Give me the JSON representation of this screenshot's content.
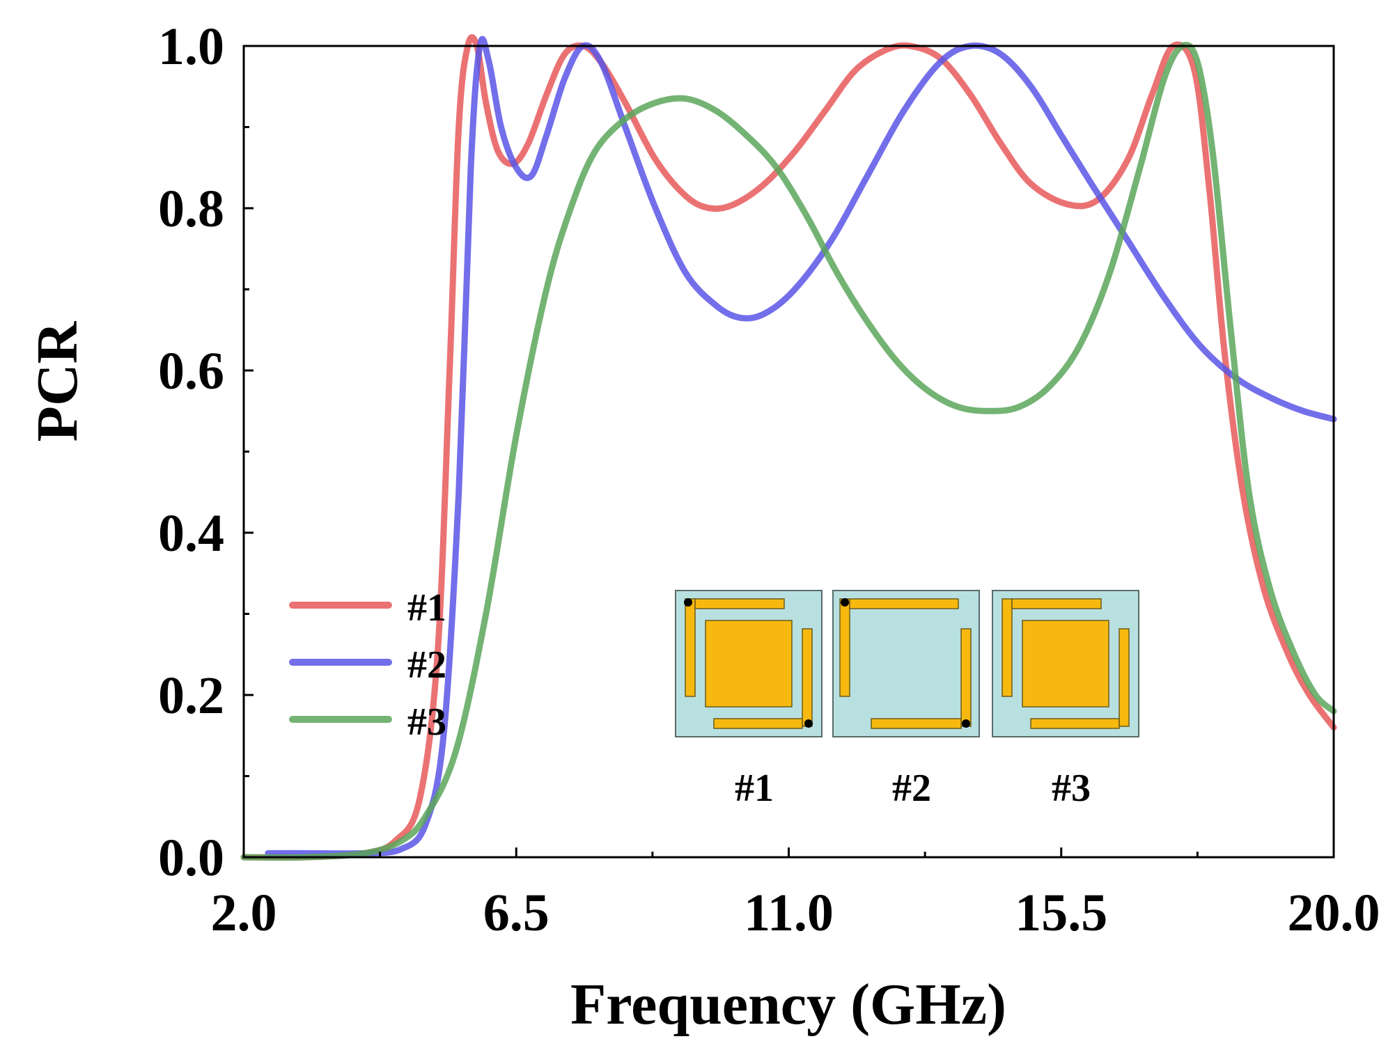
{
  "chart_data": {
    "type": "line",
    "title": "",
    "xlabel": "Frequency (GHz)",
    "ylabel": "PCR",
    "xlim": [
      2.0,
      20.0
    ],
    "ylim": [
      0.0,
      1.0
    ],
    "grid": false,
    "legend_position": "left",
    "x_ticks": [
      2.0,
      6.5,
      11.0,
      15.5,
      20.0
    ],
    "x_tick_labels": [
      "2.0",
      "6.5",
      "11.0",
      "15.5",
      "20.0"
    ],
    "y_ticks": [
      0.0,
      0.2,
      0.4,
      0.6,
      0.8,
      1.0
    ],
    "y_tick_labels": [
      "0.0",
      "0.2",
      "0.4",
      "0.6",
      "0.8",
      "1.0"
    ],
    "series": [
      {
        "name": "#1",
        "color": "#e8595a",
        "points": [
          [
            2.0,
            0.0
          ],
          [
            3.0,
            0.0
          ],
          [
            4.0,
            0.005
          ],
          [
            4.5,
            0.02
          ],
          [
            4.9,
            0.07
          ],
          [
            5.2,
            0.25
          ],
          [
            5.4,
            0.6
          ],
          [
            5.55,
            0.9
          ],
          [
            5.7,
            1.0
          ],
          [
            5.85,
            1.0
          ],
          [
            6.0,
            0.93
          ],
          [
            6.2,
            0.87
          ],
          [
            6.45,
            0.855
          ],
          [
            6.7,
            0.88
          ],
          [
            7.0,
            0.94
          ],
          [
            7.3,
            0.99
          ],
          [
            7.6,
            1.0
          ],
          [
            7.9,
            0.98
          ],
          [
            8.3,
            0.93
          ],
          [
            8.8,
            0.86
          ],
          [
            9.3,
            0.815
          ],
          [
            9.7,
            0.8
          ],
          [
            10.1,
            0.805
          ],
          [
            10.6,
            0.83
          ],
          [
            11.1,
            0.87
          ],
          [
            11.6,
            0.92
          ],
          [
            12.1,
            0.97
          ],
          [
            12.6,
            0.995
          ],
          [
            13.0,
            1.0
          ],
          [
            13.5,
            0.985
          ],
          [
            14.0,
            0.94
          ],
          [
            14.5,
            0.88
          ],
          [
            15.0,
            0.83
          ],
          [
            15.6,
            0.805
          ],
          [
            16.1,
            0.81
          ],
          [
            16.6,
            0.86
          ],
          [
            17.0,
            0.94
          ],
          [
            17.35,
            1.0
          ],
          [
            17.7,
            0.97
          ],
          [
            17.95,
            0.82
          ],
          [
            18.2,
            0.62
          ],
          [
            18.5,
            0.45
          ],
          [
            18.85,
            0.33
          ],
          [
            19.25,
            0.25
          ],
          [
            19.6,
            0.2
          ],
          [
            20.0,
            0.16
          ]
        ]
      },
      {
        "name": "#2",
        "color": "#5b55e6",
        "points": [
          [
            2.4,
            0.005
          ],
          [
            3.0,
            0.005
          ],
          [
            4.0,
            0.005
          ],
          [
            4.6,
            0.01
          ],
          [
            5.0,
            0.04
          ],
          [
            5.3,
            0.15
          ],
          [
            5.55,
            0.45
          ],
          [
            5.75,
            0.85
          ],
          [
            5.9,
            1.0
          ],
          [
            6.05,
            0.98
          ],
          [
            6.25,
            0.9
          ],
          [
            6.5,
            0.85
          ],
          [
            6.75,
            0.84
          ],
          [
            7.0,
            0.89
          ],
          [
            7.3,
            0.96
          ],
          [
            7.6,
            1.0
          ],
          [
            7.9,
            0.98
          ],
          [
            8.3,
            0.9
          ],
          [
            8.8,
            0.8
          ],
          [
            9.3,
            0.72
          ],
          [
            9.8,
            0.68
          ],
          [
            10.2,
            0.665
          ],
          [
            10.6,
            0.67
          ],
          [
            11.1,
            0.7
          ],
          [
            11.7,
            0.76
          ],
          [
            12.3,
            0.84
          ],
          [
            12.9,
            0.92
          ],
          [
            13.5,
            0.98
          ],
          [
            14.0,
            1.0
          ],
          [
            14.5,
            0.99
          ],
          [
            15.0,
            0.95
          ],
          [
            15.5,
            0.89
          ],
          [
            16.0,
            0.83
          ],
          [
            16.6,
            0.76
          ],
          [
            17.2,
            0.69
          ],
          [
            17.8,
            0.63
          ],
          [
            18.4,
            0.59
          ],
          [
            19.0,
            0.565
          ],
          [
            19.5,
            0.55
          ],
          [
            20.0,
            0.54
          ]
        ]
      },
      {
        "name": "#3",
        "color": "#5aa65a",
        "points": [
          [
            2.0,
            0.0
          ],
          [
            3.0,
            0.0
          ],
          [
            4.0,
            0.005
          ],
          [
            4.6,
            0.02
          ],
          [
            5.0,
            0.05
          ],
          [
            5.5,
            0.13
          ],
          [
            6.0,
            0.3
          ],
          [
            6.5,
            0.52
          ],
          [
            7.0,
            0.7
          ],
          [
            7.4,
            0.8
          ],
          [
            7.8,
            0.87
          ],
          [
            8.3,
            0.91
          ],
          [
            8.8,
            0.93
          ],
          [
            9.3,
            0.935
          ],
          [
            9.8,
            0.92
          ],
          [
            10.3,
            0.89
          ],
          [
            10.8,
            0.85
          ],
          [
            11.3,
            0.79
          ],
          [
            11.8,
            0.72
          ],
          [
            12.3,
            0.66
          ],
          [
            12.8,
            0.61
          ],
          [
            13.3,
            0.575
          ],
          [
            13.8,
            0.555
          ],
          [
            14.3,
            0.55
          ],
          [
            14.8,
            0.555
          ],
          [
            15.3,
            0.58
          ],
          [
            15.8,
            0.63
          ],
          [
            16.3,
            0.72
          ],
          [
            16.8,
            0.85
          ],
          [
            17.2,
            0.96
          ],
          [
            17.5,
            1.0
          ],
          [
            17.75,
            0.98
          ],
          [
            18.0,
            0.87
          ],
          [
            18.3,
            0.65
          ],
          [
            18.6,
            0.45
          ],
          [
            18.95,
            0.33
          ],
          [
            19.35,
            0.25
          ],
          [
            19.7,
            0.2
          ],
          [
            20.0,
            0.18
          ]
        ]
      }
    ],
    "inset": {
      "labels": [
        "#1",
        "#2",
        "#3"
      ],
      "panel_color": "#b8e0e0",
      "patch_color": "#f7b90f"
    }
  }
}
